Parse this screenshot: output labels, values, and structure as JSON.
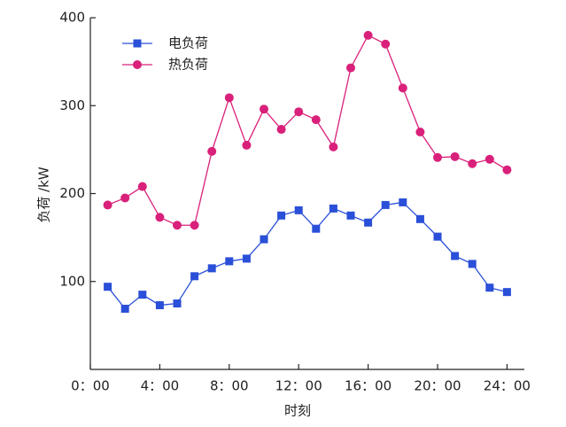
{
  "chart_data": {
    "type": "line",
    "x_label": "时刻",
    "y_label": "负荷 /kW",
    "x": [
      1,
      2,
      3,
      4,
      5,
      6,
      7,
      8,
      9,
      10,
      11,
      12,
      13,
      14,
      15,
      16,
      17,
      18,
      19,
      20,
      21,
      22,
      23,
      24
    ],
    "series": [
      {
        "name": "电负荷",
        "color": "#2a4fd8",
        "marker": "square",
        "values": [
          94,
          69,
          85,
          73,
          75,
          106,
          115,
          123,
          126,
          148,
          175,
          181,
          160,
          183,
          175,
          167,
          187,
          190,
          171,
          151,
          129,
          120,
          93,
          88
        ]
      },
      {
        "name": "热负荷",
        "color": "#d9207a",
        "marker": "circle",
        "values": [
          187,
          195,
          208,
          173,
          164,
          164,
          248,
          309,
          255,
          296,
          273,
          293,
          284,
          253,
          343,
          380,
          370,
          320,
          270,
          241,
          242,
          234,
          239,
          227
        ]
      }
    ],
    "xlim": [
      0,
      25
    ],
    "ylim": [
      0,
      400
    ],
    "xticks": [
      {
        "value": 0,
        "label": "0：00"
      },
      {
        "value": 4,
        "label": "4：00"
      },
      {
        "value": 8,
        "label": "8：00"
      },
      {
        "value": 12,
        "label": "12：00"
      },
      {
        "value": 16,
        "label": "16：00"
      },
      {
        "value": 20,
        "label": "20：00"
      },
      {
        "value": 24,
        "label": "24：00"
      }
    ],
    "yticks": [
      100,
      200,
      300,
      400
    ],
    "legend": "top-left"
  }
}
